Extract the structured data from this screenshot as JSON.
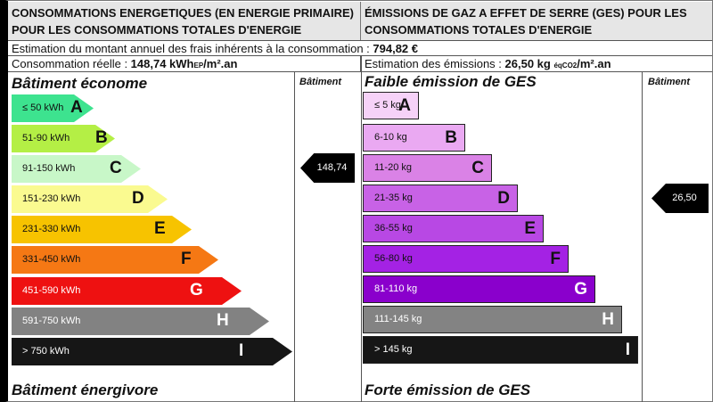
{
  "energy": {
    "header": "CONSOMMATIONS ENERGETIQUES (EN ENERGIE PRIMAIRE) POUR LES CONSOMMATIONS TOTALES D'ENERGIE",
    "cost_label": "Estimation du montant annuel des frais inhérents à la consommation : ",
    "cost_value": "794,82 €",
    "consumption_label": "Consommation réelle : ",
    "consumption_value": "148,74 kWh",
    "consumption_sub": "EP",
    "consumption_unit": "/m².an",
    "top_label": "Bâtiment économe",
    "bottom_label": "Bâtiment énergivore",
    "column_label": "Bâtiment",
    "indicator": "148,74",
    "current_class": "C",
    "classes": [
      {
        "letter": "A",
        "range": "≤ 50 kWh",
        "color": "#3de38f"
      },
      {
        "letter": "B",
        "range": "51-90 kWh",
        "color": "#b4ef45"
      },
      {
        "letter": "C",
        "range": "91-150 kWh",
        "color": "#c8f7c8"
      },
      {
        "letter": "D",
        "range": "151-230 kWh",
        "color": "#fafa90"
      },
      {
        "letter": "E",
        "range": "231-330 kWh",
        "color": "#f7c300"
      },
      {
        "letter": "F",
        "range": "331-450 kWh",
        "color": "#f57814"
      },
      {
        "letter": "G",
        "range": "451-590 kWh",
        "color": "#ee1111"
      },
      {
        "letter": "H",
        "range": "591-750  kWh",
        "color": "#828282"
      },
      {
        "letter": "I",
        "range": "> 750 kWh",
        "color": "#161616"
      }
    ]
  },
  "ges": {
    "header": "ÉMISSIONS DE GAZ A EFFET DE SERRE (GES) POUR LES CONSOMMATIONS TOTALES D'ENERGIE",
    "emission_label": "Estimation des émissions : ",
    "emission_value": "26,50 kg",
    "emission_sub": "éqCO2",
    "emission_unit": "/m².an",
    "top_label": "Faible émission de GES",
    "bottom_label": "Forte émission de GES",
    "column_label": "Bâtiment",
    "indicator": "26,50",
    "current_class": "D",
    "classes": [
      {
        "letter": "A",
        "range": "≤ 5 kg",
        "color": "#f6d2f8"
      },
      {
        "letter": "B",
        "range": "6-10 kg",
        "color": "#eaa9f2"
      },
      {
        "letter": "C",
        "range": "11-20 kg",
        "color": "#da82e6"
      },
      {
        "letter": "D",
        "range": "21-35 kg",
        "color": "#c862e6"
      },
      {
        "letter": "E",
        "range": "36-55 kg",
        "color": "#b848e4"
      },
      {
        "letter": "F",
        "range": "56-80 kg",
        "color": "#a422e4"
      },
      {
        "letter": "G",
        "range": "81-110 kg",
        "color": "#8a00cc"
      },
      {
        "letter": "H",
        "range": "111-145 kg",
        "color": "#838383"
      },
      {
        "letter": "I",
        "range": "> 145 kg",
        "color": "#161616"
      }
    ]
  }
}
